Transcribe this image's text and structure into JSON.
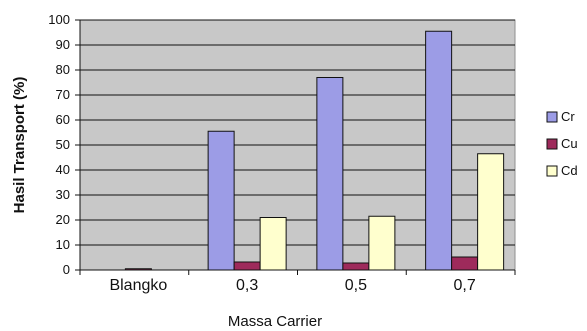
{
  "chart_data": {
    "type": "bar",
    "categories": [
      "Blangko",
      "0,3",
      "0,5",
      "0,7"
    ],
    "series": [
      {
        "name": "Cr",
        "values": [
          0,
          55.5,
          77,
          95.5
        ],
        "color": "#9C9CE6"
      },
      {
        "name": "Cu",
        "values": [
          0.5,
          3.2,
          2.8,
          5.2
        ],
        "color": "#9E2A5B"
      },
      {
        "name": "Cd",
        "values": [
          0,
          21,
          21.5,
          46.5
        ],
        "color": "#FFFFCE"
      }
    ],
    "title": "",
    "xlabel": "Massa Carrier",
    "ylabel": "Hasil Transport (%)",
    "ylim": [
      0,
      100
    ],
    "yticks": [
      0,
      10,
      20,
      30,
      40,
      50,
      60,
      70,
      80,
      90,
      100
    ],
    "ytick_labels": [
      "0",
      "10",
      "20",
      "30",
      "40",
      "50",
      "60",
      "70",
      "80",
      "90",
      "100"
    ],
    "grid": true,
    "legend_position": "right",
    "plot_background": "#C8C8C8"
  }
}
